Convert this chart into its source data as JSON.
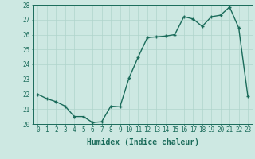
{
  "x": [
    0,
    1,
    2,
    3,
    4,
    5,
    6,
    7,
    8,
    9,
    10,
    11,
    12,
    13,
    14,
    15,
    16,
    17,
    18,
    19,
    20,
    21,
    22,
    23
  ],
  "y": [
    22.0,
    21.7,
    21.5,
    21.2,
    20.5,
    20.5,
    20.1,
    20.15,
    21.2,
    21.15,
    23.1,
    24.5,
    25.8,
    25.85,
    25.9,
    26.0,
    27.2,
    27.05,
    26.55,
    27.2,
    27.3,
    27.85,
    26.45,
    21.85
  ],
  "line_color": "#1a6b5a",
  "marker": "+",
  "marker_size": 3.5,
  "bg_color": "#cde8e2",
  "grid_color": "#b0d4cc",
  "xlabel": "Humidex (Indice chaleur)",
  "ylim": [
    20,
    28
  ],
  "xlim": [
    -0.5,
    23.5
  ],
  "yticks": [
    20,
    21,
    22,
    23,
    24,
    25,
    26,
    27,
    28
  ],
  "xticks": [
    0,
    1,
    2,
    3,
    4,
    5,
    6,
    7,
    8,
    9,
    10,
    11,
    12,
    13,
    14,
    15,
    16,
    17,
    18,
    19,
    20,
    21,
    22,
    23
  ],
  "tick_color": "#1a6b5a",
  "tick_fontsize": 5.5,
  "xlabel_fontsize": 7,
  "linewidth": 1.0
}
